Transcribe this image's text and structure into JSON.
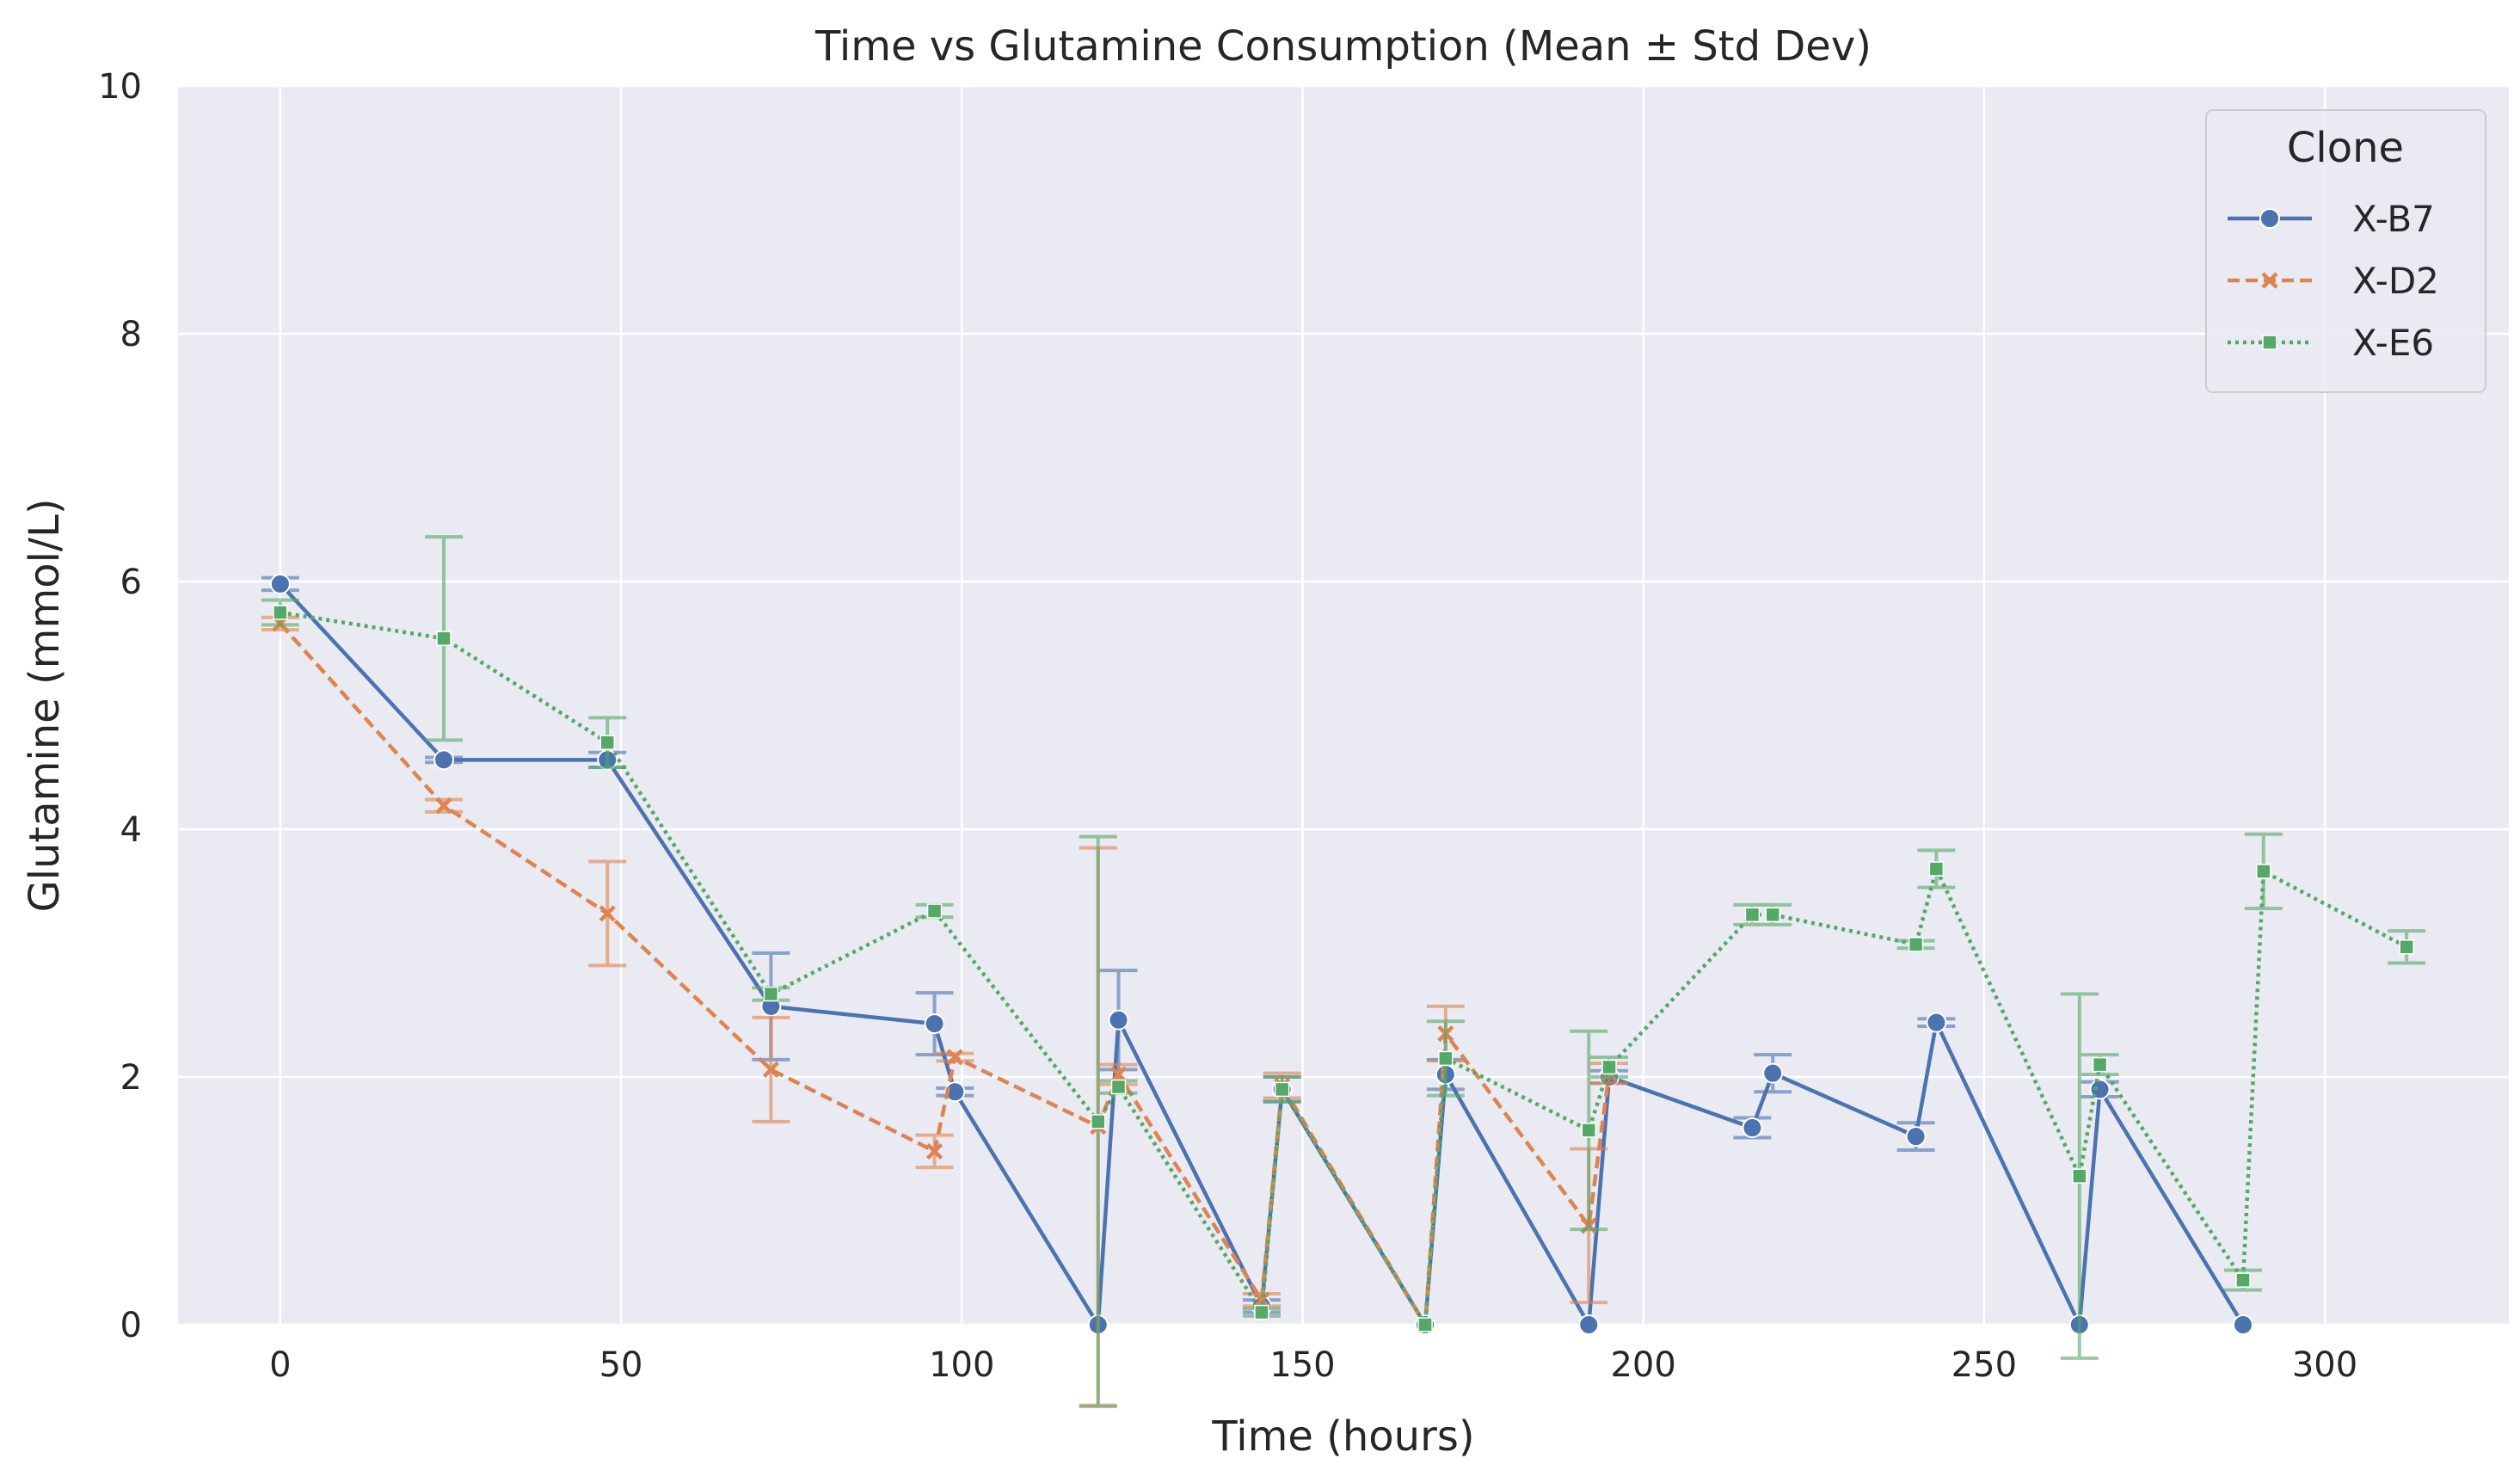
{
  "chart_data": {
    "type": "line",
    "title": "Time vs Glutamine Consumption (Mean ± Std Dev)",
    "xlabel": "Time (hours)",
    "ylabel": "Glutamine (mmol/L)",
    "xlim": [
      -15,
      327
    ],
    "ylim": [
      0,
      10
    ],
    "xticks": [
      0,
      50,
      100,
      150,
      200,
      250,
      300
    ],
    "yticks": [
      0,
      2,
      4,
      6,
      8,
      10
    ],
    "x_tick_labels": [
      "0",
      "50",
      "100",
      "150",
      "200",
      "250",
      "300"
    ],
    "y_tick_labels": [
      "0",
      "2",
      "4",
      "6",
      "8",
      "10"
    ],
    "grid": true,
    "legend": {
      "title": "Clone",
      "placement": "top-right"
    },
    "series": [
      {
        "name": "X-B7",
        "color": "#4c72b0",
        "linestyle": "solid",
        "marker": "circle",
        "points": [
          {
            "x": 0,
            "y": 5.98,
            "err": 0.05
          },
          {
            "x": 24,
            "y": 4.56,
            "err": 0.02
          },
          {
            "x": 48,
            "y": 4.56,
            "err": 0.06
          },
          {
            "x": 72,
            "y": 2.57,
            "err": 0.43
          },
          {
            "x": 96,
            "y": 2.43,
            "err": 0.25
          },
          {
            "x": 99,
            "y": 1.88,
            "err": 0.03
          },
          {
            "x": 120,
            "y": 0.0,
            "err": 0.0
          },
          {
            "x": 123,
            "y": 2.46,
            "err": 0.4
          },
          {
            "x": 144,
            "y": 0.15,
            "err": 0.05
          },
          {
            "x": 147,
            "y": 1.9,
            "err": 0.1
          },
          {
            "x": 168,
            "y": 0.0,
            "err": 0.0
          },
          {
            "x": 171,
            "y": 2.02,
            "err": 0.12
          },
          {
            "x": 192,
            "y": 0.0,
            "err": 0.0
          },
          {
            "x": 195,
            "y": 2.0,
            "err": 0.05
          },
          {
            "x": 216,
            "y": 1.59,
            "err": 0.08
          },
          {
            "x": 219,
            "y": 2.03,
            "err": 0.15
          },
          {
            "x": 240,
            "y": 1.52,
            "err": 0.11
          },
          {
            "x": 243,
            "y": 2.44,
            "err": 0.03
          },
          {
            "x": 264,
            "y": 0.0,
            "err": 0.0
          },
          {
            "x": 267,
            "y": 1.9,
            "err": 0.06
          },
          {
            "x": 288,
            "y": 0.0,
            "err": 0.0
          }
        ]
      },
      {
        "name": "X-D2",
        "color": "#dd8452",
        "linestyle": "dashed",
        "marker": "x",
        "points": [
          {
            "x": 0,
            "y": 5.66,
            "err": 0.05
          },
          {
            "x": 24,
            "y": 4.19,
            "err": 0.05
          },
          {
            "x": 48,
            "y": 3.32,
            "err": 0.42
          },
          {
            "x": 72,
            "y": 2.06,
            "err": 0.42
          },
          {
            "x": 96,
            "y": 1.4,
            "err": 0.13
          },
          {
            "x": 99,
            "y": 2.16,
            "err": 0.03
          },
          {
            "x": 120,
            "y": 1.6,
            "err": 2.25
          },
          {
            "x": 123,
            "y": 2.02,
            "err": 0.08
          },
          {
            "x": 144,
            "y": 0.2,
            "err": 0.05
          },
          {
            "x": 147,
            "y": 1.93,
            "err": 0.1
          },
          {
            "x": 168,
            "y": 0.0,
            "err": 0.0
          },
          {
            "x": 171,
            "y": 2.35,
            "err": 0.22
          },
          {
            "x": 192,
            "y": 0.8,
            "err": 0.62
          },
          {
            "x": 195,
            "y": 2.03,
            "err": 0.08
          }
        ]
      },
      {
        "name": "X-E6",
        "color": "#55a868",
        "linestyle": "dotted",
        "marker": "square",
        "points": [
          {
            "x": 0,
            "y": 5.75,
            "err": 0.1
          },
          {
            "x": 24,
            "y": 5.54,
            "err": 0.82
          },
          {
            "x": 48,
            "y": 4.7,
            "err": 0.2
          },
          {
            "x": 72,
            "y": 2.67,
            "err": 0.05
          },
          {
            "x": 96,
            "y": 3.34,
            "err": 0.05
          },
          {
            "x": 120,
            "y": 1.64,
            "err": 2.3
          },
          {
            "x": 123,
            "y": 1.92,
            "err": 0.05
          },
          {
            "x": 144,
            "y": 0.1,
            "err": 0.03
          },
          {
            "x": 147,
            "y": 1.9,
            "err": 0.1
          },
          {
            "x": 168,
            "y": 0.0,
            "err": 0.0
          },
          {
            "x": 171,
            "y": 2.15,
            "err": 0.3
          },
          {
            "x": 192,
            "y": 1.57,
            "err": 0.8
          },
          {
            "x": 195,
            "y": 2.08,
            "err": 0.08
          },
          {
            "x": 216,
            "y": 3.31,
            "err": 0.08
          },
          {
            "x": 219,
            "y": 3.31,
            "err": 0.08
          },
          {
            "x": 240,
            "y": 3.07,
            "err": 0.03
          },
          {
            "x": 243,
            "y": 3.68,
            "err": 0.15
          },
          {
            "x": 264,
            "y": 1.2,
            "err": 1.47
          },
          {
            "x": 267,
            "y": 2.1,
            "err": 0.08
          },
          {
            "x": 288,
            "y": 0.36,
            "err": 0.08
          },
          {
            "x": 291,
            "y": 3.66,
            "err": 0.3
          },
          {
            "x": 312,
            "y": 3.05,
            "err": 0.13
          }
        ]
      }
    ]
  }
}
